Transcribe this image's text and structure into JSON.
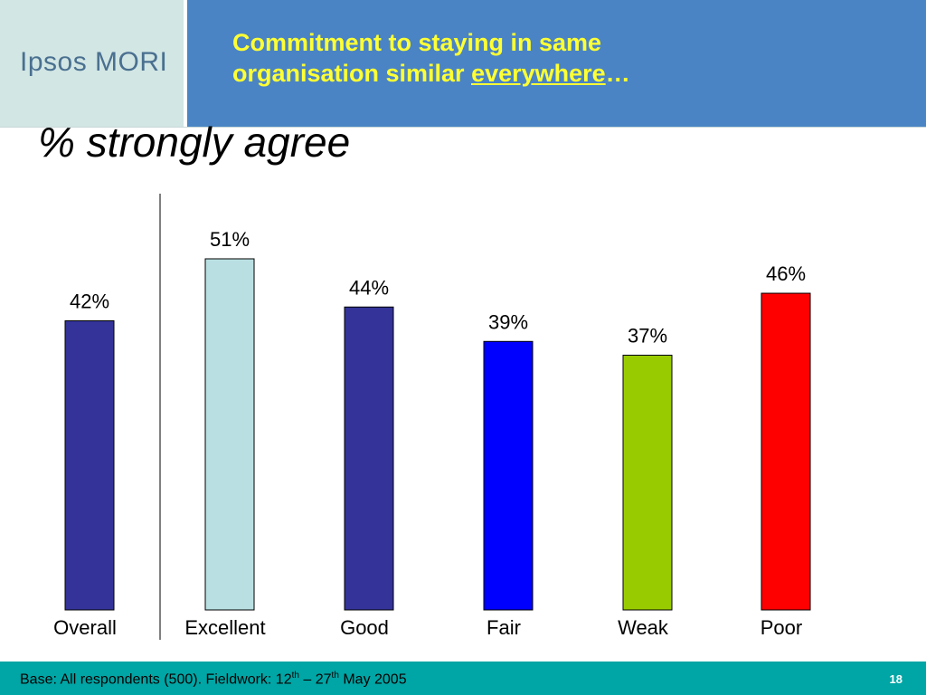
{
  "logo": {
    "text": "Ipsos MORI"
  },
  "header": {
    "title_part1": "Commitment to staying in same",
    "title_part2": "organisation similar ",
    "title_emphasis": "everywhere",
    "title_suffix": "…"
  },
  "chart_data": {
    "type": "bar",
    "title": "% strongly agree",
    "categories": [
      "Overall",
      "Excellent",
      "Good",
      "Fair",
      "Weak",
      "Poor"
    ],
    "values": [
      42,
      51,
      44,
      39,
      37,
      46
    ],
    "value_labels": [
      "42%",
      "51%",
      "44%",
      "39%",
      "37%",
      "46%"
    ],
    "colors": [
      "#333399",
      "#b9dfe2",
      "#333399",
      "#0000ff",
      "#99cc00",
      "#ff0000"
    ],
    "ylim": [
      0,
      51
    ],
    "grid": false,
    "legend": "none",
    "separator_after": "Overall"
  },
  "footer": {
    "base_prefix": "Base: All respondents (500). Fieldwork: 12",
    "sup1": "th",
    "mid": " – 27",
    "sup2": "th",
    "base_suffix": " May 2005",
    "page_number": "18"
  }
}
